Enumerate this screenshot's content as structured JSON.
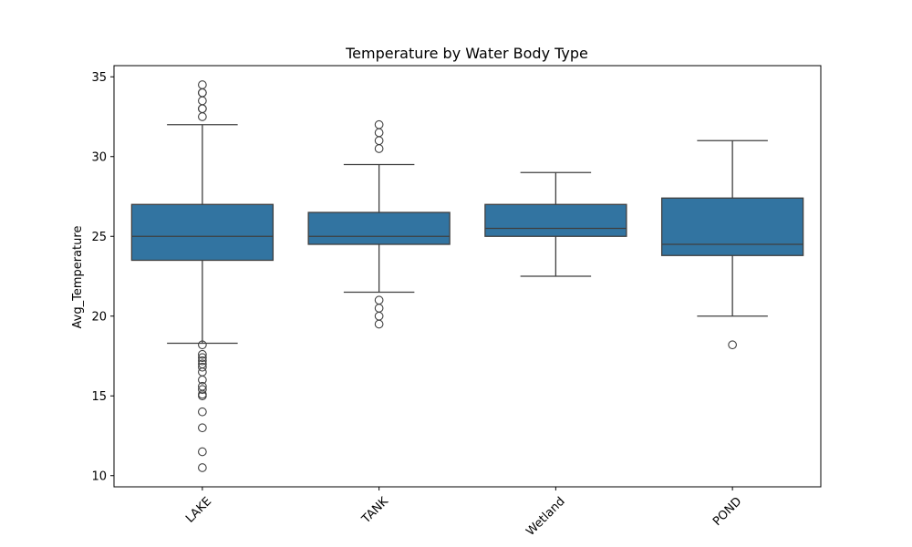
{
  "chart_data": {
    "type": "box",
    "title": "Temperature by Water Body Type",
    "xlabel": "",
    "ylabel": "Avg_Temperature",
    "ylim": [
      9.3,
      35.7
    ],
    "yticks": [
      10,
      15,
      20,
      25,
      30,
      35
    ],
    "grid": false,
    "legend": "none",
    "box_color": "#3274a1",
    "line_color": "#3f3f3f",
    "categories": [
      "LAKE",
      "TANK",
      "Wetland",
      "POND"
    ],
    "boxes": [
      {
        "category": "LAKE",
        "whisker_low": 18.3,
        "q1": 23.5,
        "median": 25.0,
        "q3": 27.0,
        "whisker_high": 32.0,
        "outliers": [
          34.5,
          34.0,
          34.0,
          33.5,
          33.0,
          33.0,
          32.5,
          18.2,
          17.6,
          17.4,
          17.2,
          17.0,
          16.8,
          16.5,
          16.0,
          15.6,
          15.4,
          15.1,
          15.0,
          14.0,
          13.0,
          11.5,
          10.5
        ]
      },
      {
        "category": "TANK",
        "whisker_low": 21.5,
        "q1": 24.5,
        "median": 25.0,
        "q3": 26.5,
        "whisker_high": 29.5,
        "outliers": [
          32.0,
          31.5,
          31.0,
          30.5,
          21.0,
          20.5,
          20.0,
          19.5
        ]
      },
      {
        "category": "Wetland",
        "whisker_low": 22.5,
        "q1": 25.0,
        "median": 25.5,
        "q3": 27.0,
        "whisker_high": 29.0,
        "outliers": []
      },
      {
        "category": "POND",
        "whisker_low": 20.0,
        "q1": 23.8,
        "median": 24.5,
        "q3": 27.4,
        "whisker_high": 31.0,
        "outliers": [
          18.2
        ]
      }
    ]
  }
}
